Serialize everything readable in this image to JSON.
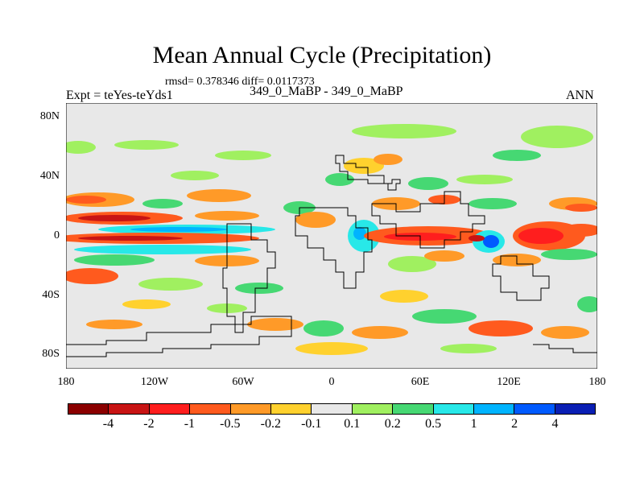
{
  "header": {
    "title": "Mean Annual Cycle (Precipitation)",
    "rmsd": "rmsd= 0.378346 diff= 0.0117373",
    "subtitle": "349_0_MaBP - 349_0_MaBP",
    "expt": "Expt = teYes-teYds1",
    "season": "ANN"
  },
  "axes": {
    "y_ticks": [
      "80N",
      "40N",
      "0",
      "40S",
      "80S"
    ],
    "x_ticks": [
      "180",
      "120W",
      "60W",
      "0",
      "60E",
      "120E",
      "180"
    ]
  },
  "colorbar": {
    "colors": [
      "#8b0000",
      "#c81414",
      "#ff1e1e",
      "#ff5a1e",
      "#ff9a28",
      "#ffd12e",
      "#e8e8e8",
      "#a0f060",
      "#46d873",
      "#28e8e8",
      "#00b4ff",
      "#005aff",
      "#0a1fb4"
    ],
    "labels": [
      "-4",
      "-2",
      "-1",
      "-0.5",
      "-0.2",
      "-0.1",
      "0.1",
      "0.2",
      "0.5",
      "1",
      "2",
      "4"
    ]
  }
}
